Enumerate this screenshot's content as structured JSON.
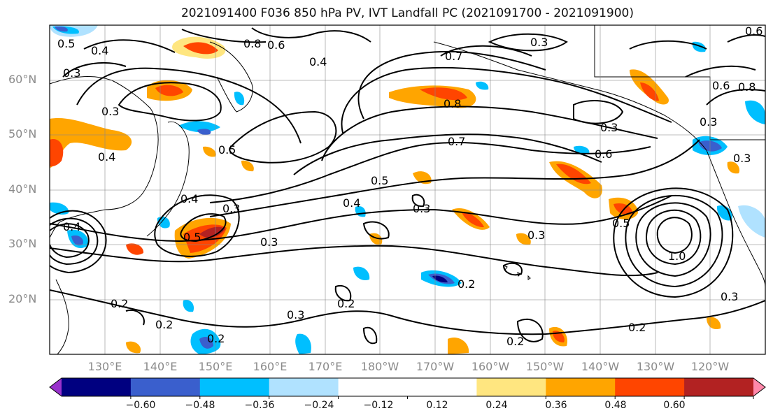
{
  "title": "2021091400 F036 850 hPa PV, IVT Landfall PC (2021091700 - 2021091900)",
  "lat_labels": [
    "60°N",
    "50°N",
    "40°N",
    "30°N",
    "20°N"
  ],
  "lon_labels": [
    "130°E",
    "140°E",
    "150°E",
    "160°E",
    "170°E",
    "180°W",
    "170°W",
    "160°W",
    "150°W",
    "140°W",
    "130°W",
    "120°W"
  ],
  "contour_labels": [
    "0.5",
    "0.4",
    "0.8",
    "0.6",
    "0.4",
    "0.7",
    "0.3",
    "0.6",
    "0.8",
    "0.3",
    "0.3",
    "0.4",
    "0.5",
    "0.7",
    "0.6",
    "0.3",
    "0.6",
    "0.8",
    "0.3",
    "0.3",
    "0.4",
    "0.5",
    "0.4",
    "0.3",
    "0.3",
    "0.5",
    "0.3",
    "0.5",
    "0.4",
    "0.3",
    "1.0",
    "0.2",
    "0.2",
    "0.3",
    "0.2",
    "0.2",
    "0.2",
    "0.2",
    "0.2",
    "0.3"
  ],
  "colorbar": {
    "colors": [
      "#9932cc",
      "#000080",
      "#3a5fcd",
      "#00bfff",
      "#b0e2ff",
      "#ffffff",
      "#ffffff",
      "#ffe680",
      "#ffa500",
      "#ff4500",
      "#b22222",
      "#ff88aa"
    ],
    "tick_labels": [
      "−0.60",
      "−0.48",
      "−0.36",
      "−0.24",
      "−0.12",
      "0.12",
      "0.24",
      "0.36",
      "0.48",
      "0.60"
    ]
  }
}
